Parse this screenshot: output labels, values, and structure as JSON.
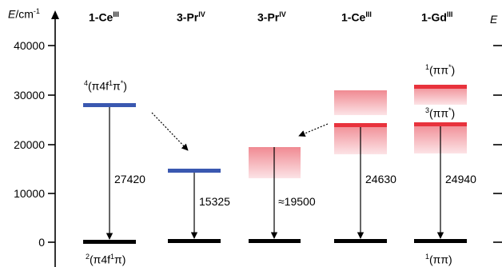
{
  "axis": {
    "title_var": "E",
    "title_unit": "/cm",
    "title_exp": "-1",
    "ticks": [
      "40000",
      "30000",
      "20000",
      "10000",
      "0"
    ],
    "tick_values": [
      40000,
      30000,
      20000,
      10000,
      0
    ]
  },
  "columns": [
    {
      "base": "1-Ce",
      "sup": "III"
    },
    {
      "base": "3-Pr",
      "sup": "IV"
    },
    {
      "base": "3-Pr",
      "sup": "IV"
    },
    {
      "base": "1-Ce",
      "sup": "III"
    },
    {
      "base": "1-Gd",
      "sup": "III"
    }
  ],
  "transitions": {
    "t1": "27420",
    "t2": "15325",
    "t3": "≈19500",
    "t4": "24630",
    "t5": "24940"
  },
  "states": {
    "s_upper_ce": {
      "mult": "4",
      "term": "(π4f",
      "sup2": "1",
      "term2": "π",
      "sup3": "*",
      "tail": ")"
    },
    "s_lower_ce": {
      "mult": "2",
      "term": "(π4f",
      "sup2": "1",
      "term2": "π)"
    },
    "s_gd_singlet": {
      "mult": "1",
      "term": "(ππ",
      "sup3": "*",
      "tail": ")"
    },
    "s_gd_triplet": {
      "mult": "3",
      "term": "(ππ",
      "sup3": "*",
      "tail": ")"
    },
    "s_gd_ground": {
      "mult": "1",
      "term": "(ππ)"
    }
  },
  "edge_fragment": "E",
  "colors": {
    "blue": "#3A58B0",
    "red": "#E8323C",
    "pink_top": "#F08A92",
    "pink_bottom": "#FCE3E6",
    "ground": "#000000"
  }
}
